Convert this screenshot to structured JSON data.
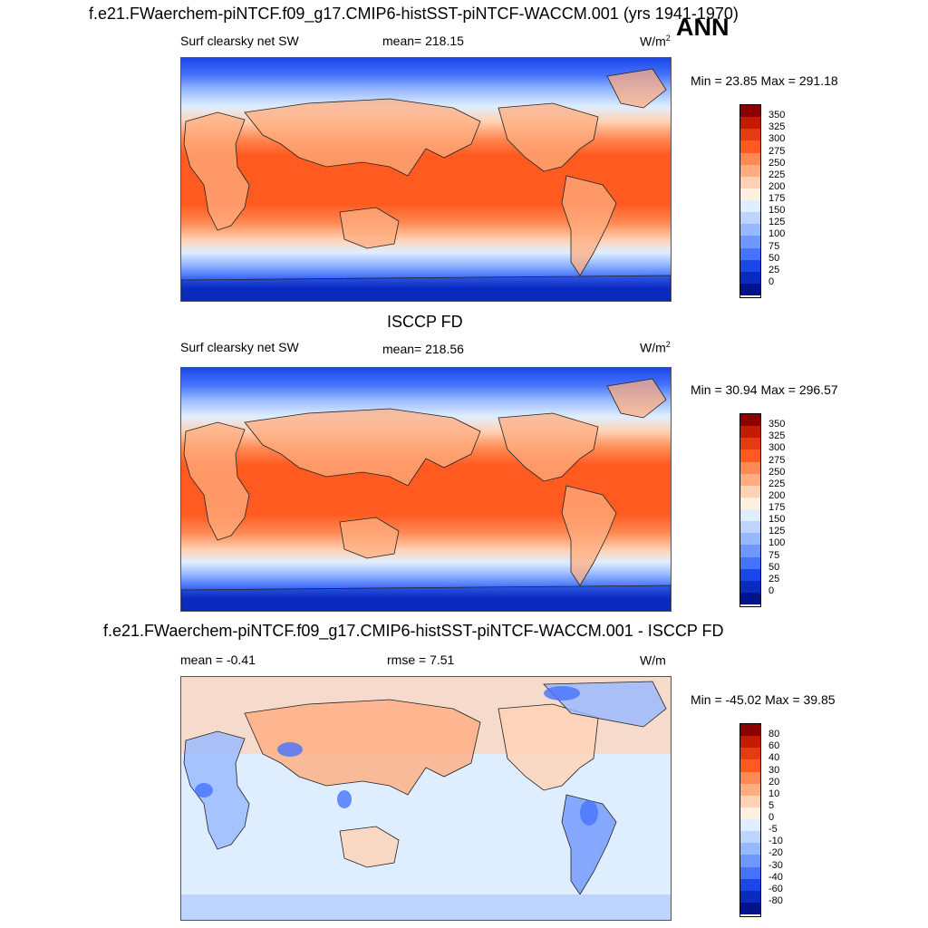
{
  "figure_title": "f.e21.FWaerchem-piNTCF.f09_g17.CMIP6-histSST-piNTCF-WACCM.001 (yrs 1941-1970)",
  "season": "ANN",
  "panels": [
    {
      "title": "",
      "left_label": "Surf clearsky net SW",
      "center_label": "mean= 218.15",
      "units": "W/m",
      "units_sup": "2",
      "minmax": "Min =  23.85 Max = 291.18",
      "levels": [
        "350",
        "325",
        "300",
        "275",
        "250",
        "225",
        "200",
        "175",
        "150",
        "125",
        "100",
        "75",
        "50",
        "25",
        "0"
      ],
      "colors": [
        "#8b0000",
        "#c41a00",
        "#e63b12",
        "#ff5a1f",
        "#ff8a55",
        "#ffad80",
        "#ffd2b5",
        "#fff0e0",
        "#dfeeff",
        "#bcd4ff",
        "#96b8ff",
        "#6f97ff",
        "#4673fb",
        "#1a48e8",
        "#0a2bbf",
        "#00138a"
      ]
    },
    {
      "title": "ISCCP FD",
      "left_label": "Surf clearsky net SW",
      "center_label": "mean= 218.56",
      "units": "W/m",
      "units_sup": "2",
      "minmax": "Min =  30.94 Max = 296.57",
      "levels": [
        "350",
        "325",
        "300",
        "275",
        "250",
        "225",
        "200",
        "175",
        "150",
        "125",
        "100",
        "75",
        "50",
        "25",
        "0"
      ],
      "colors": [
        "#8b0000",
        "#c41a00",
        "#e63b12",
        "#ff5a1f",
        "#ff8a55",
        "#ffad80",
        "#ffd2b5",
        "#fff0e0",
        "#dfeeff",
        "#bcd4ff",
        "#96b8ff",
        "#6f97ff",
        "#4673fb",
        "#1a48e8",
        "#0a2bbf",
        "#00138a"
      ]
    },
    {
      "title": "f.e21.FWaerchem-piNTCF.f09_g17.CMIP6-histSST-piNTCF-WACCM.001 - ISCCP FD",
      "left_label": "mean =  -0.41",
      "center_label": "rmse =   7.51",
      "units": "W/m",
      "units_sup": "",
      "minmax": "Min = -45.02 Max =  39.85",
      "levels": [
        "80",
        "60",
        "40",
        "30",
        "20",
        "10",
        "5",
        "0",
        "-5",
        "-10",
        "-20",
        "-30",
        "-40",
        "-60",
        "-80"
      ],
      "colors": [
        "#8b0000",
        "#c41a00",
        "#e63b12",
        "#ff5a1f",
        "#ff8a55",
        "#ffad80",
        "#ffd2b5",
        "#fff0e0",
        "#dfeeff",
        "#bcd4ff",
        "#96b8ff",
        "#6f97ff",
        "#4673fb",
        "#1a48e8",
        "#0a2bbf",
        "#00138a"
      ]
    }
  ]
}
